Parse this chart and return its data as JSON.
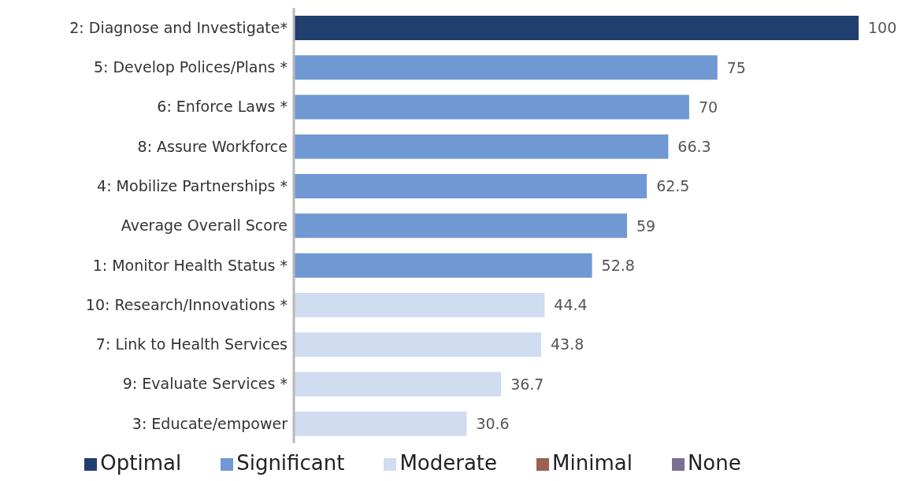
{
  "chart_data": {
    "type": "bar",
    "orientation": "horizontal",
    "stacked": true,
    "data_labels": true,
    "legend": "bottom",
    "grid": false,
    "categories": [
      "2: Diagnose and Investigate*",
      "5: Develop Polices/Plans *",
      "6: Enforce Laws *",
      "8: Assure Workforce",
      "4: Mobilize Partnerships *",
      "Average Overall Score",
      "1: Monitor Health Status *",
      "10: Research/Innovations *",
      "7: Link to Health Services",
      "9: Evaluate Services *",
      "3: Educate/empower"
    ],
    "series": [
      {
        "name": "Optimal",
        "color": "#213f6e",
        "values": [
          100,
          null,
          null,
          null,
          null,
          null,
          null,
          null,
          null,
          null,
          null
        ]
      },
      {
        "name": "Significant",
        "color": "#7098d2",
        "values": [
          null,
          75,
          70,
          66.3,
          62.5,
          59,
          52.8,
          null,
          null,
          null,
          null
        ]
      },
      {
        "name": "Moderate",
        "color": "#d0dcef",
        "values": [
          null,
          null,
          null,
          null,
          null,
          null,
          null,
          44.4,
          43.8,
          36.7,
          30.6
        ]
      },
      {
        "name": "Minimal",
        "color": "#9a6050",
        "values": [
          null,
          null,
          null,
          null,
          null,
          null,
          null,
          null,
          null,
          null,
          null
        ]
      },
      {
        "name": "None",
        "color": "#7a6f92",
        "values": [
          null,
          null,
          null,
          null,
          null,
          null,
          null,
          null,
          null,
          null,
          null
        ]
      }
    ]
  }
}
